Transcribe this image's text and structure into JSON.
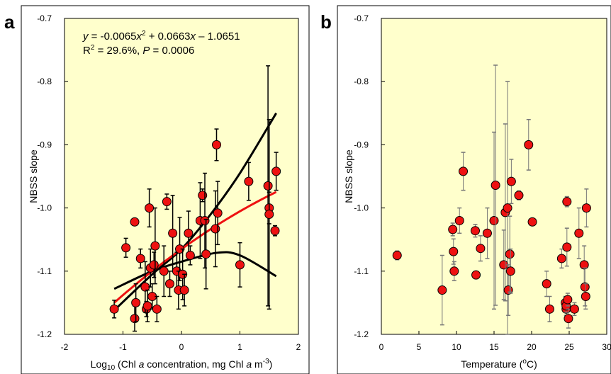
{
  "chart_data": [
    {
      "type": "scatter",
      "panel_label": "a",
      "xlabel": "Log₁₀ (Chl a concentration, mg Chl a m⁻³)",
      "ylabel": "NBSS slope",
      "xlim": [
        -2,
        2
      ],
      "ylim": [
        -1.2,
        -0.7
      ],
      "xticks": [
        "-2",
        "-1",
        "0",
        "1",
        "2"
      ],
      "yticks": [
        "-1.2",
        "-1.1",
        "-1.0",
        "-0.9",
        "-0.8",
        "-0.7"
      ],
      "plot_background": "#ffffcc",
      "point_color": "#ee1111",
      "annotation": {
        "line1_y": "y",
        "line1_mid": " = -0.0065",
        "line1_x1": "x",
        "line1_sup": "2",
        "line1_plus": " + 0.0663",
        "line1_x2": "x",
        "line1_end": " – 1.0651",
        "line2_r": "R",
        "line2_sup": "2",
        "line2_mid": " = 29.6%, ",
        "line2_p": "P",
        "line2_end": " = 0.0006"
      },
      "fit": {
        "color": "#ee1111",
        "a": -0.0065,
        "b": 0.0663,
        "c": -1.0651,
        "x_range": [
          -1.15,
          1.62
        ]
      },
      "confidence_band": {
        "color": "#000000",
        "upper": [
          [
            -1.15,
            -1.162
          ],
          [
            -0.5,
            -1.105
          ],
          [
            0,
            -1.065
          ],
          [
            0.5,
            -1.01
          ],
          [
            1.0,
            -0.945
          ],
          [
            1.62,
            -0.85
          ]
        ],
        "lower": [
          [
            -1.15,
            -1.128
          ],
          [
            -0.5,
            -1.1
          ],
          [
            0,
            -1.085
          ],
          [
            0.6,
            -1.071
          ],
          [
            1.0,
            -1.075
          ],
          [
            1.62,
            -1.108
          ]
        ]
      },
      "points": [
        {
          "x": -1.15,
          "y": -1.16,
          "err": 0.014
        },
        {
          "x": -0.95,
          "y": -1.063,
          "err": 0.015
        },
        {
          "x": -0.8,
          "y": -1.175,
          "err": 0.02
        },
        {
          "x": -0.78,
          "y": -1.15,
          "err": 0.03
        },
        {
          "x": -0.8,
          "y": -1.022,
          "err": 0
        },
        {
          "x": -0.7,
          "y": -1.08,
          "err": 0.015
        },
        {
          "x": -0.6,
          "y": -1.16,
          "err": 0.012
        },
        {
          "x": -0.62,
          "y": -1.125,
          "err": 0.04
        },
        {
          "x": -0.58,
          "y": -1.155,
          "err": 0.025
        },
        {
          "x": -0.55,
          "y": -1.0,
          "err": 0.03
        },
        {
          "x": -0.53,
          "y": -1.095,
          "err": 0.03
        },
        {
          "x": -0.5,
          "y": -1.14,
          "err": 0.02
        },
        {
          "x": -0.47,
          "y": -1.09,
          "err": 0.02
        },
        {
          "x": -0.45,
          "y": -1.06,
          "err": 0.06
        },
        {
          "x": -0.42,
          "y": -1.16,
          "err": 0.02
        },
        {
          "x": -0.3,
          "y": -1.1,
          "err": 0.04
        },
        {
          "x": -0.25,
          "y": -0.99,
          "err": 0.012
        },
        {
          "x": -0.2,
          "y": -1.12,
          "err": 0.02
        },
        {
          "x": -0.15,
          "y": -1.04,
          "err": 0.06
        },
        {
          "x": -0.08,
          "y": -1.1,
          "err": 0.03
        },
        {
          "x": -0.05,
          "y": -1.13,
          "err": 0.03
        },
        {
          "x": -0.03,
          "y": -1.065,
          "err": 0.05
        },
        {
          "x": 0.02,
          "y": -1.105,
          "err": 0.04
        },
        {
          "x": 0.05,
          "y": -1.13,
          "err": 0.025
        },
        {
          "x": 0.12,
          "y": -1.04,
          "err": 0.035
        },
        {
          "x": 0.15,
          "y": -1.075,
          "err": 0.015
        },
        {
          "x": 0.32,
          "y": -1.02,
          "err": 0.06
        },
        {
          "x": 0.36,
          "y": -0.98,
          "err": 0.01
        },
        {
          "x": 0.4,
          "y": -1.02,
          "err": 0.075
        },
        {
          "x": 0.42,
          "y": -1.073,
          "err": 0.055
        },
        {
          "x": 0.58,
          "y": -1.033,
          "err": 0.06
        },
        {
          "x": 0.6,
          "y": -0.9,
          "err": 0.025
        },
        {
          "x": 0.62,
          "y": -1.008,
          "err": 0.05
        },
        {
          "x": 1.0,
          "y": -1.09,
          "err": 0.035
        },
        {
          "x": 1.15,
          "y": -0.958,
          "err": 0.03
        },
        {
          "x": 1.48,
          "y": -0.965,
          "err": 0.19
        },
        {
          "x": 1.5,
          "y": -1.0,
          "err": 0.025
        },
        {
          "x": 1.5,
          "y": -1.01,
          "err": 0.15
        },
        {
          "x": 1.6,
          "y": -1.036,
          "err": 0.008
        },
        {
          "x": 1.62,
          "y": -0.942,
          "err": 0.03
        }
      ]
    },
    {
      "type": "scatter",
      "panel_label": "b",
      "xlabel": "Temperature (°C)",
      "ylabel": "NBSS slope",
      "xlim": [
        0,
        30
      ],
      "ylim": [
        -1.2,
        -0.7
      ],
      "xticks": [
        "0",
        "5",
        "10",
        "15",
        "20",
        "25",
        "30"
      ],
      "yticks": [
        "-1.2",
        "-1.1",
        "-1.0",
        "-0.9",
        "-0.8",
        "-0.7"
      ],
      "plot_background": "#ffffcc",
      "point_color": "#ee1111",
      "points": [
        {
          "x": 2.1,
          "y": -1.075,
          "err": 0.007
        },
        {
          "x": 8.1,
          "y": -1.13,
          "err": 0.055
        },
        {
          "x": 9.5,
          "y": -1.034,
          "err": 0.01
        },
        {
          "x": 9.6,
          "y": -1.069,
          "err": 0.02
        },
        {
          "x": 9.7,
          "y": -1.1,
          "err": 0.015
        },
        {
          "x": 10.4,
          "y": -1.02,
          "err": 0.02
        },
        {
          "x": 10.9,
          "y": -0.942,
          "err": 0.03
        },
        {
          "x": 12.5,
          "y": -1.036,
          "err": 0.01
        },
        {
          "x": 12.6,
          "y": -1.106,
          "err": 0.006
        },
        {
          "x": 13.2,
          "y": -1.064,
          "err": 0.02
        },
        {
          "x": 14.1,
          "y": -1.04,
          "err": 0.04
        },
        {
          "x": 15.0,
          "y": -1.02,
          "err": 0.14
        },
        {
          "x": 15.2,
          "y": -0.964,
          "err": 0.19
        },
        {
          "x": 16.3,
          "y": -1.09,
          "err": 0.055
        },
        {
          "x": 16.5,
          "y": -1.007,
          "err": 0.14
        },
        {
          "x": 16.8,
          "y": -1.0,
          "err": 0.2
        },
        {
          "x": 16.9,
          "y": -1.13,
          "err": 0.04
        },
        {
          "x": 17.1,
          "y": -1.073,
          "err": 0.06
        },
        {
          "x": 17.2,
          "y": -1.1,
          "err": 0.035
        },
        {
          "x": 17.3,
          "y": -0.958,
          "err": 0.035
        },
        {
          "x": 18.3,
          "y": -0.98,
          "err": 0.007
        },
        {
          "x": 19.6,
          "y": -0.9,
          "err": 0.04
        },
        {
          "x": 20.1,
          "y": -1.022,
          "err": 0
        },
        {
          "x": 22.0,
          "y": -1.12,
          "err": 0.02
        },
        {
          "x": 22.4,
          "y": -1.16,
          "err": 0.02
        },
        {
          "x": 24.0,
          "y": -1.08,
          "err": 0.015
        },
        {
          "x": 24.5,
          "y": -1.15,
          "err": 0.01
        },
        {
          "x": 24.6,
          "y": -1.16,
          "err": 0.01
        },
        {
          "x": 24.6,
          "y": -1.155,
          "err": 0.01
        },
        {
          "x": 24.7,
          "y": -0.99,
          "err": 0.008
        },
        {
          "x": 24.7,
          "y": -1.062,
          "err": 0.03
        },
        {
          "x": 24.8,
          "y": -1.145,
          "err": 0.01
        },
        {
          "x": 24.9,
          "y": -1.175,
          "err": 0.015
        },
        {
          "x": 25.7,
          "y": -1.16,
          "err": 0.01
        },
        {
          "x": 26.3,
          "y": -1.04,
          "err": 0.04
        },
        {
          "x": 27.0,
          "y": -1.09,
          "err": 0.03
        },
        {
          "x": 27.1,
          "y": -1.125,
          "err": 0.03
        },
        {
          "x": 27.2,
          "y": -1.14,
          "err": 0.02
        },
        {
          "x": 27.3,
          "y": -1.0,
          "err": 0.03
        }
      ]
    }
  ]
}
